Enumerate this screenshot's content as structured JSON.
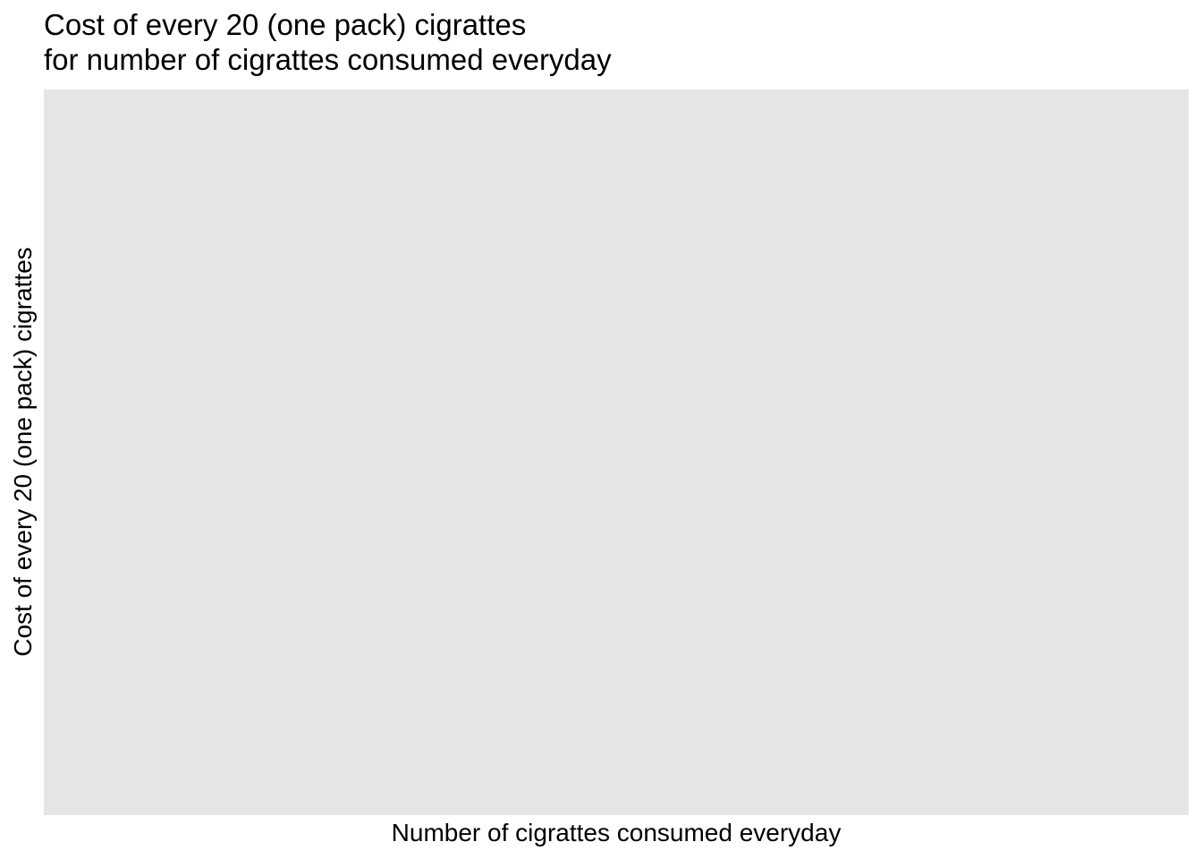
{
  "chart_data": {
    "type": "scatter",
    "title_lines": [
      "Cost of every 20 (one pack) cigrattes",
      "for number of cigrattes consumed everyday"
    ],
    "xlabel": "Number of cigrattes consumed everyday",
    "ylabel": "Cost of every 20 (one pack) cigrattes",
    "series": [],
    "grid": false,
    "legend": "none",
    "panel_color": "#e5e5e5"
  }
}
